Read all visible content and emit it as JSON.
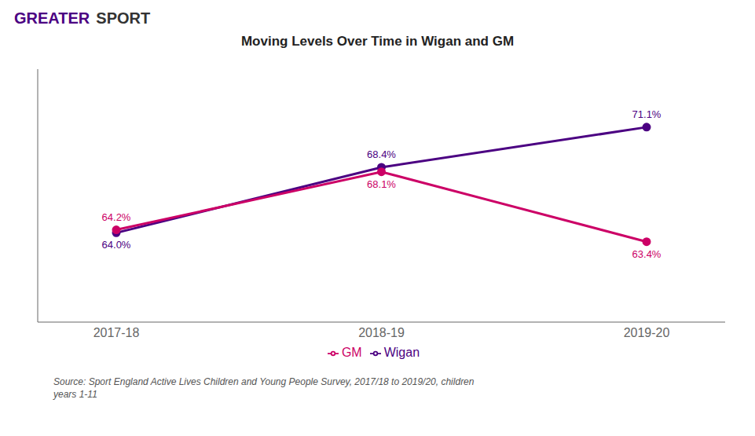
{
  "chart_data": {
    "type": "line",
    "title": "Moving Levels Over Time in Wigan and GM",
    "categories": [
      "2017-18",
      "2018-19",
      "2019-20"
    ],
    "series": [
      {
        "name": "Wigan",
        "color": "#4B0082",
        "marker": "circle",
        "values": [
          64.0,
          68.4,
          71.1
        ],
        "value_labels": [
          "64.0%",
          "68.4%",
          "71.1%"
        ]
      },
      {
        "name": "GM",
        "color": "#CC0066",
        "marker": "circle",
        "values": [
          64.2,
          68.1,
          63.4
        ],
        "value_labels": [
          "64.2%",
          "68.1%",
          "63.4%"
        ]
      }
    ],
    "ylim": [
      58,
      75
    ],
    "tick_labels": "x",
    "grid": false,
    "legend": "bottom",
    "data_labels": true,
    "annotations": [
      {
        "text": "GREATER",
        "color": "#4B0082"
      },
      {
        "text": "SPORT",
        "color": "#333333"
      },
      {
        "text": "Source: Sport England Active Lives Children and Young People Survey, 2017/18 to 2019/20, children\nyears 1-11"
      }
    ]
  }
}
